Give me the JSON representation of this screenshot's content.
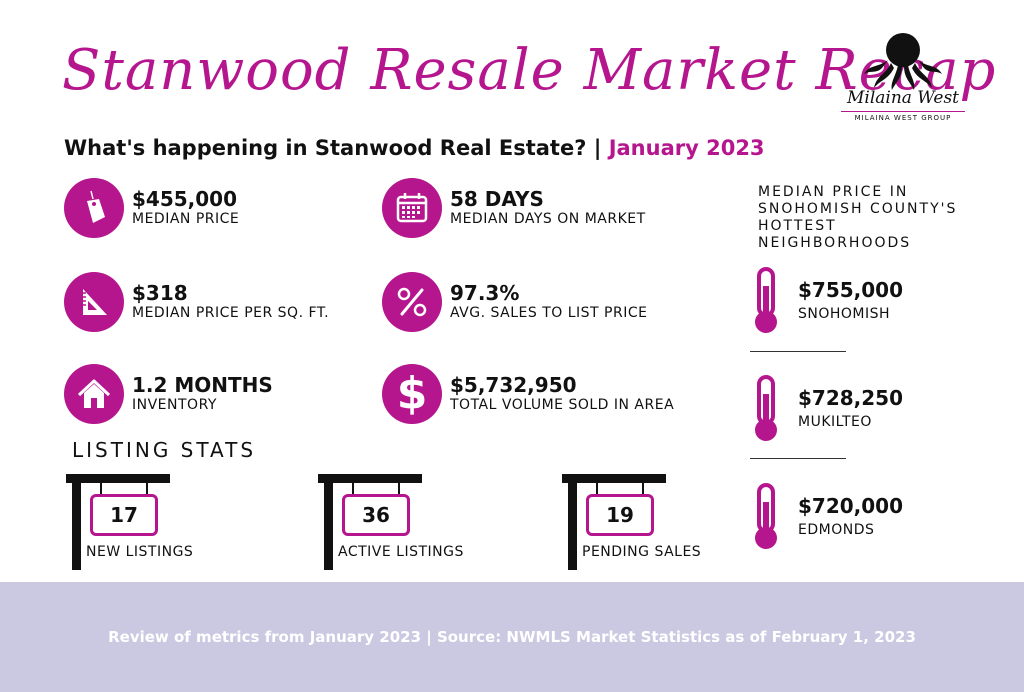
{
  "title": "Stanwood Resale Market Recap",
  "logo": {
    "script_name": "Milaina West",
    "group_name": "MILAINA WEST GROUP"
  },
  "subtitle": {
    "text": "What's happening in Stanwood Real Estate? |",
    "period": "January 2023"
  },
  "accent_color": "#b5168e",
  "stats": [
    {
      "icon": "price-tag-icon",
      "value": "$455,000",
      "label": "MEDIAN PRICE"
    },
    {
      "icon": "calendar-icon",
      "value": "58 DAYS",
      "label": "MEDIAN DAYS ON MARKET"
    },
    {
      "icon": "triangle-ruler-icon",
      "value": "$318",
      "label": "MEDIAN PRICE PER SQ. FT."
    },
    {
      "icon": "percent-icon",
      "value": "97.3%",
      "label": "AVG. SALES TO LIST PRICE"
    },
    {
      "icon": "house-icon",
      "value": "1.2 MONTHS",
      "label": "INVENTORY"
    },
    {
      "icon": "dollar-icon",
      "value": "$5,732,950",
      "label": "TOTAL VOLUME SOLD IN AREA"
    }
  ],
  "neighborhoods": {
    "heading": "MEDIAN PRICE IN SNOHOMISH COUNTY'S HOTTEST NEIGHBORHOODS",
    "items": [
      {
        "value": "$755,000",
        "label": "SNOHOMISH"
      },
      {
        "value": "$728,250",
        "label": "MUKILTEO"
      },
      {
        "value": "$720,000",
        "label": "EDMONDS"
      }
    ]
  },
  "listing_stats": {
    "title": "LISTING STATS",
    "items": [
      {
        "value": "17",
        "label": "NEW LISTINGS"
      },
      {
        "value": "36",
        "label": "ACTIVE LISTINGS"
      },
      {
        "value": "19",
        "label": "PENDING SALES"
      }
    ]
  },
  "footer": "Review of metrics from January 2023 | Source: NWMLS Market Statistics as of February 1, 2023"
}
